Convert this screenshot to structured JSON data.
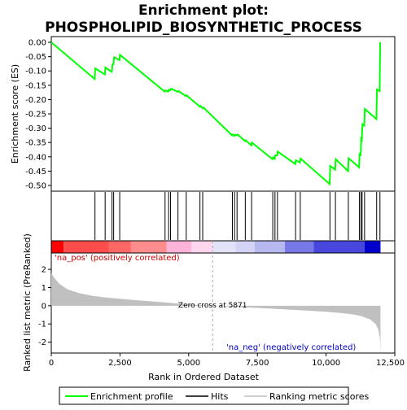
{
  "chart_data": {
    "type": "line",
    "title_line1": "Enrichment plot:",
    "title_line2": "PHOSPHOLIPID_BIOSYNTHETIC_PROCESS",
    "es_panel": {
      "ylabel": "Enrichment score (ES)",
      "ylim": [
        -0.52,
        0.02
      ],
      "yticks": [
        0.0,
        -0.05,
        -0.1,
        -0.15,
        -0.2,
        -0.25,
        -0.3,
        -0.35,
        -0.4,
        -0.45,
        -0.5
      ],
      "ytick_labels": [
        "0.00",
        "-0.05",
        "-0.10",
        "-0.15",
        "-0.20",
        "-0.25",
        "-0.30",
        "-0.35",
        "-0.40",
        "-0.45",
        "-0.50"
      ],
      "curve": [
        [
          0,
          0.0
        ],
        [
          1580,
          -0.128
        ],
        [
          1600,
          -0.091
        ],
        [
          1950,
          -0.112
        ],
        [
          1970,
          -0.088
        ],
        [
          2200,
          -0.103
        ],
        [
          2230,
          -0.077
        ],
        [
          2260,
          -0.077
        ],
        [
          2290,
          -0.052
        ],
        [
          2480,
          -0.062
        ],
        [
          2500,
          -0.044
        ],
        [
          4130,
          -0.172
        ],
        [
          4150,
          -0.168
        ],
        [
          4260,
          -0.172
        ],
        [
          4280,
          -0.166
        ],
        [
          4330,
          -0.168
        ],
        [
          4360,
          -0.162
        ],
        [
          4600,
          -0.173
        ],
        [
          4630,
          -0.17
        ],
        [
          4900,
          -0.188
        ],
        [
          4920,
          -0.185
        ],
        [
          5400,
          -0.224
        ],
        [
          5430,
          -0.222
        ],
        [
          5500,
          -0.23
        ],
        [
          5530,
          -0.227
        ],
        [
          6580,
          -0.325
        ],
        [
          6600,
          -0.322
        ],
        [
          6660,
          -0.327
        ],
        [
          6680,
          -0.323
        ],
        [
          6750,
          -0.325
        ],
        [
          6780,
          -0.322
        ],
        [
          7050,
          -0.345
        ],
        [
          7070,
          -0.342
        ],
        [
          7280,
          -0.36
        ],
        [
          7300,
          -0.35
        ],
        [
          8050,
          -0.408
        ],
        [
          8070,
          -0.402
        ],
        [
          8130,
          -0.407
        ],
        [
          8150,
          -0.395
        ],
        [
          8220,
          -0.395
        ],
        [
          8240,
          -0.382
        ],
        [
          8880,
          -0.425
        ],
        [
          8900,
          -0.412
        ],
        [
          9050,
          -0.42
        ],
        [
          9070,
          -0.406
        ],
        [
          10130,
          -0.495
        ],
        [
          10150,
          -0.432
        ],
        [
          10330,
          -0.445
        ],
        [
          10350,
          -0.408
        ],
        [
          10800,
          -0.45
        ],
        [
          10820,
          -0.405
        ],
        [
          11200,
          -0.437
        ],
        [
          11220,
          -0.39
        ],
        [
          11260,
          -0.393
        ],
        [
          11280,
          -0.337
        ],
        [
          11300,
          -0.34
        ],
        [
          11320,
          -0.286
        ],
        [
          11390,
          -0.291
        ],
        [
          11410,
          -0.233
        ],
        [
          11830,
          -0.268
        ],
        [
          11850,
          -0.165
        ],
        [
          11950,
          -0.17
        ],
        [
          11970,
          0.0
        ]
      ]
    },
    "hits": [
      1590,
      1960,
      2210,
      2270,
      2490,
      4140,
      4270,
      4340,
      4610,
      4910,
      5410,
      5510,
      6590,
      6670,
      6760,
      7060,
      7290,
      8060,
      8140,
      8230,
      8890,
      9060,
      10140,
      10340,
      10810,
      11210,
      11270,
      11310,
      11400,
      11840,
      11960
    ],
    "color_band": [
      {
        "from": 0,
        "to": 450,
        "color": "#ff0000"
      },
      {
        "from": 450,
        "to": 2100,
        "color": "#ff4d4d"
      },
      {
        "from": 2100,
        "to": 2900,
        "color": "#ff6666"
      },
      {
        "from": 2900,
        "to": 4200,
        "color": "#ff8c8c"
      },
      {
        "from": 4200,
        "to": 5100,
        "color": "#ffb3d9"
      },
      {
        "from": 5100,
        "to": 5871,
        "color": "#ffd6ee"
      },
      {
        "from": 5871,
        "to": 6700,
        "color": "#e2e2f8"
      },
      {
        "from": 6700,
        "to": 7400,
        "color": "#d3d3f5"
      },
      {
        "from": 7400,
        "to": 8500,
        "color": "#b8b8f0"
      },
      {
        "from": 8500,
        "to": 9550,
        "color": "#7878e6"
      },
      {
        "from": 9550,
        "to": 11400,
        "color": "#4747dd"
      },
      {
        "from": 11400,
        "to": 11980,
        "color": "#0000cc"
      }
    ],
    "metric_panel": {
      "ylabel": "Ranked list metric (PreRanked)",
      "ylim": [
        -2.6,
        2.9
      ],
      "yticks": [
        2,
        1,
        0,
        -1,
        -2
      ],
      "ytick_labels": [
        "2",
        "1",
        "0",
        "-1",
        "-2"
      ],
      "profile": [
        [
          0,
          1.8
        ],
        [
          100,
          1.55
        ],
        [
          300,
          1.2
        ],
        [
          600,
          0.9
        ],
        [
          1000,
          0.7
        ],
        [
          1500,
          0.55
        ],
        [
          2000,
          0.45
        ],
        [
          3000,
          0.32
        ],
        [
          4000,
          0.2
        ],
        [
          5000,
          0.08
        ],
        [
          5871,
          0.0
        ],
        [
          7000,
          -0.08
        ],
        [
          8000,
          -0.16
        ],
        [
          9000,
          -0.24
        ],
        [
          10000,
          -0.33
        ],
        [
          10500,
          -0.39
        ],
        [
          11000,
          -0.48
        ],
        [
          11300,
          -0.58
        ],
        [
          11600,
          -0.75
        ],
        [
          11800,
          -1.0
        ],
        [
          11900,
          -1.3
        ],
        [
          11960,
          -1.8
        ],
        [
          11980,
          -2.6
        ]
      ],
      "pos_label": "'na_pos' (positively correlated)",
      "neg_label": "'na_neg' (negatively correlated)",
      "zero_cross_label": "Zero cross at 5871",
      "zero_cross": 5871
    },
    "xaxis": {
      "xlabel": "Rank in Ordered Dataset",
      "xlim": [
        0,
        12500
      ],
      "xticks": [
        0,
        2500,
        5000,
        7500,
        10000,
        12500
      ],
      "xtick_labels": [
        "0",
        "2,500",
        "5,000",
        "7,500",
        "10,000",
        "12,500"
      ]
    },
    "legend": {
      "placement": "bottom",
      "entries": [
        {
          "label": "Enrichment profile",
          "color": "#00ff00"
        },
        {
          "label": "Hits",
          "color": "#000000"
        },
        {
          "label": "Ranking metric scores",
          "color": "#c0c0c0"
        }
      ]
    },
    "colors": {
      "curve": "#00ff00",
      "hits": "#000000",
      "metric_fill": "#c0c0c0",
      "pos_text": "#cc0000",
      "neg_text": "#0000cc",
      "zero_line": "#aaaaaa"
    }
  }
}
